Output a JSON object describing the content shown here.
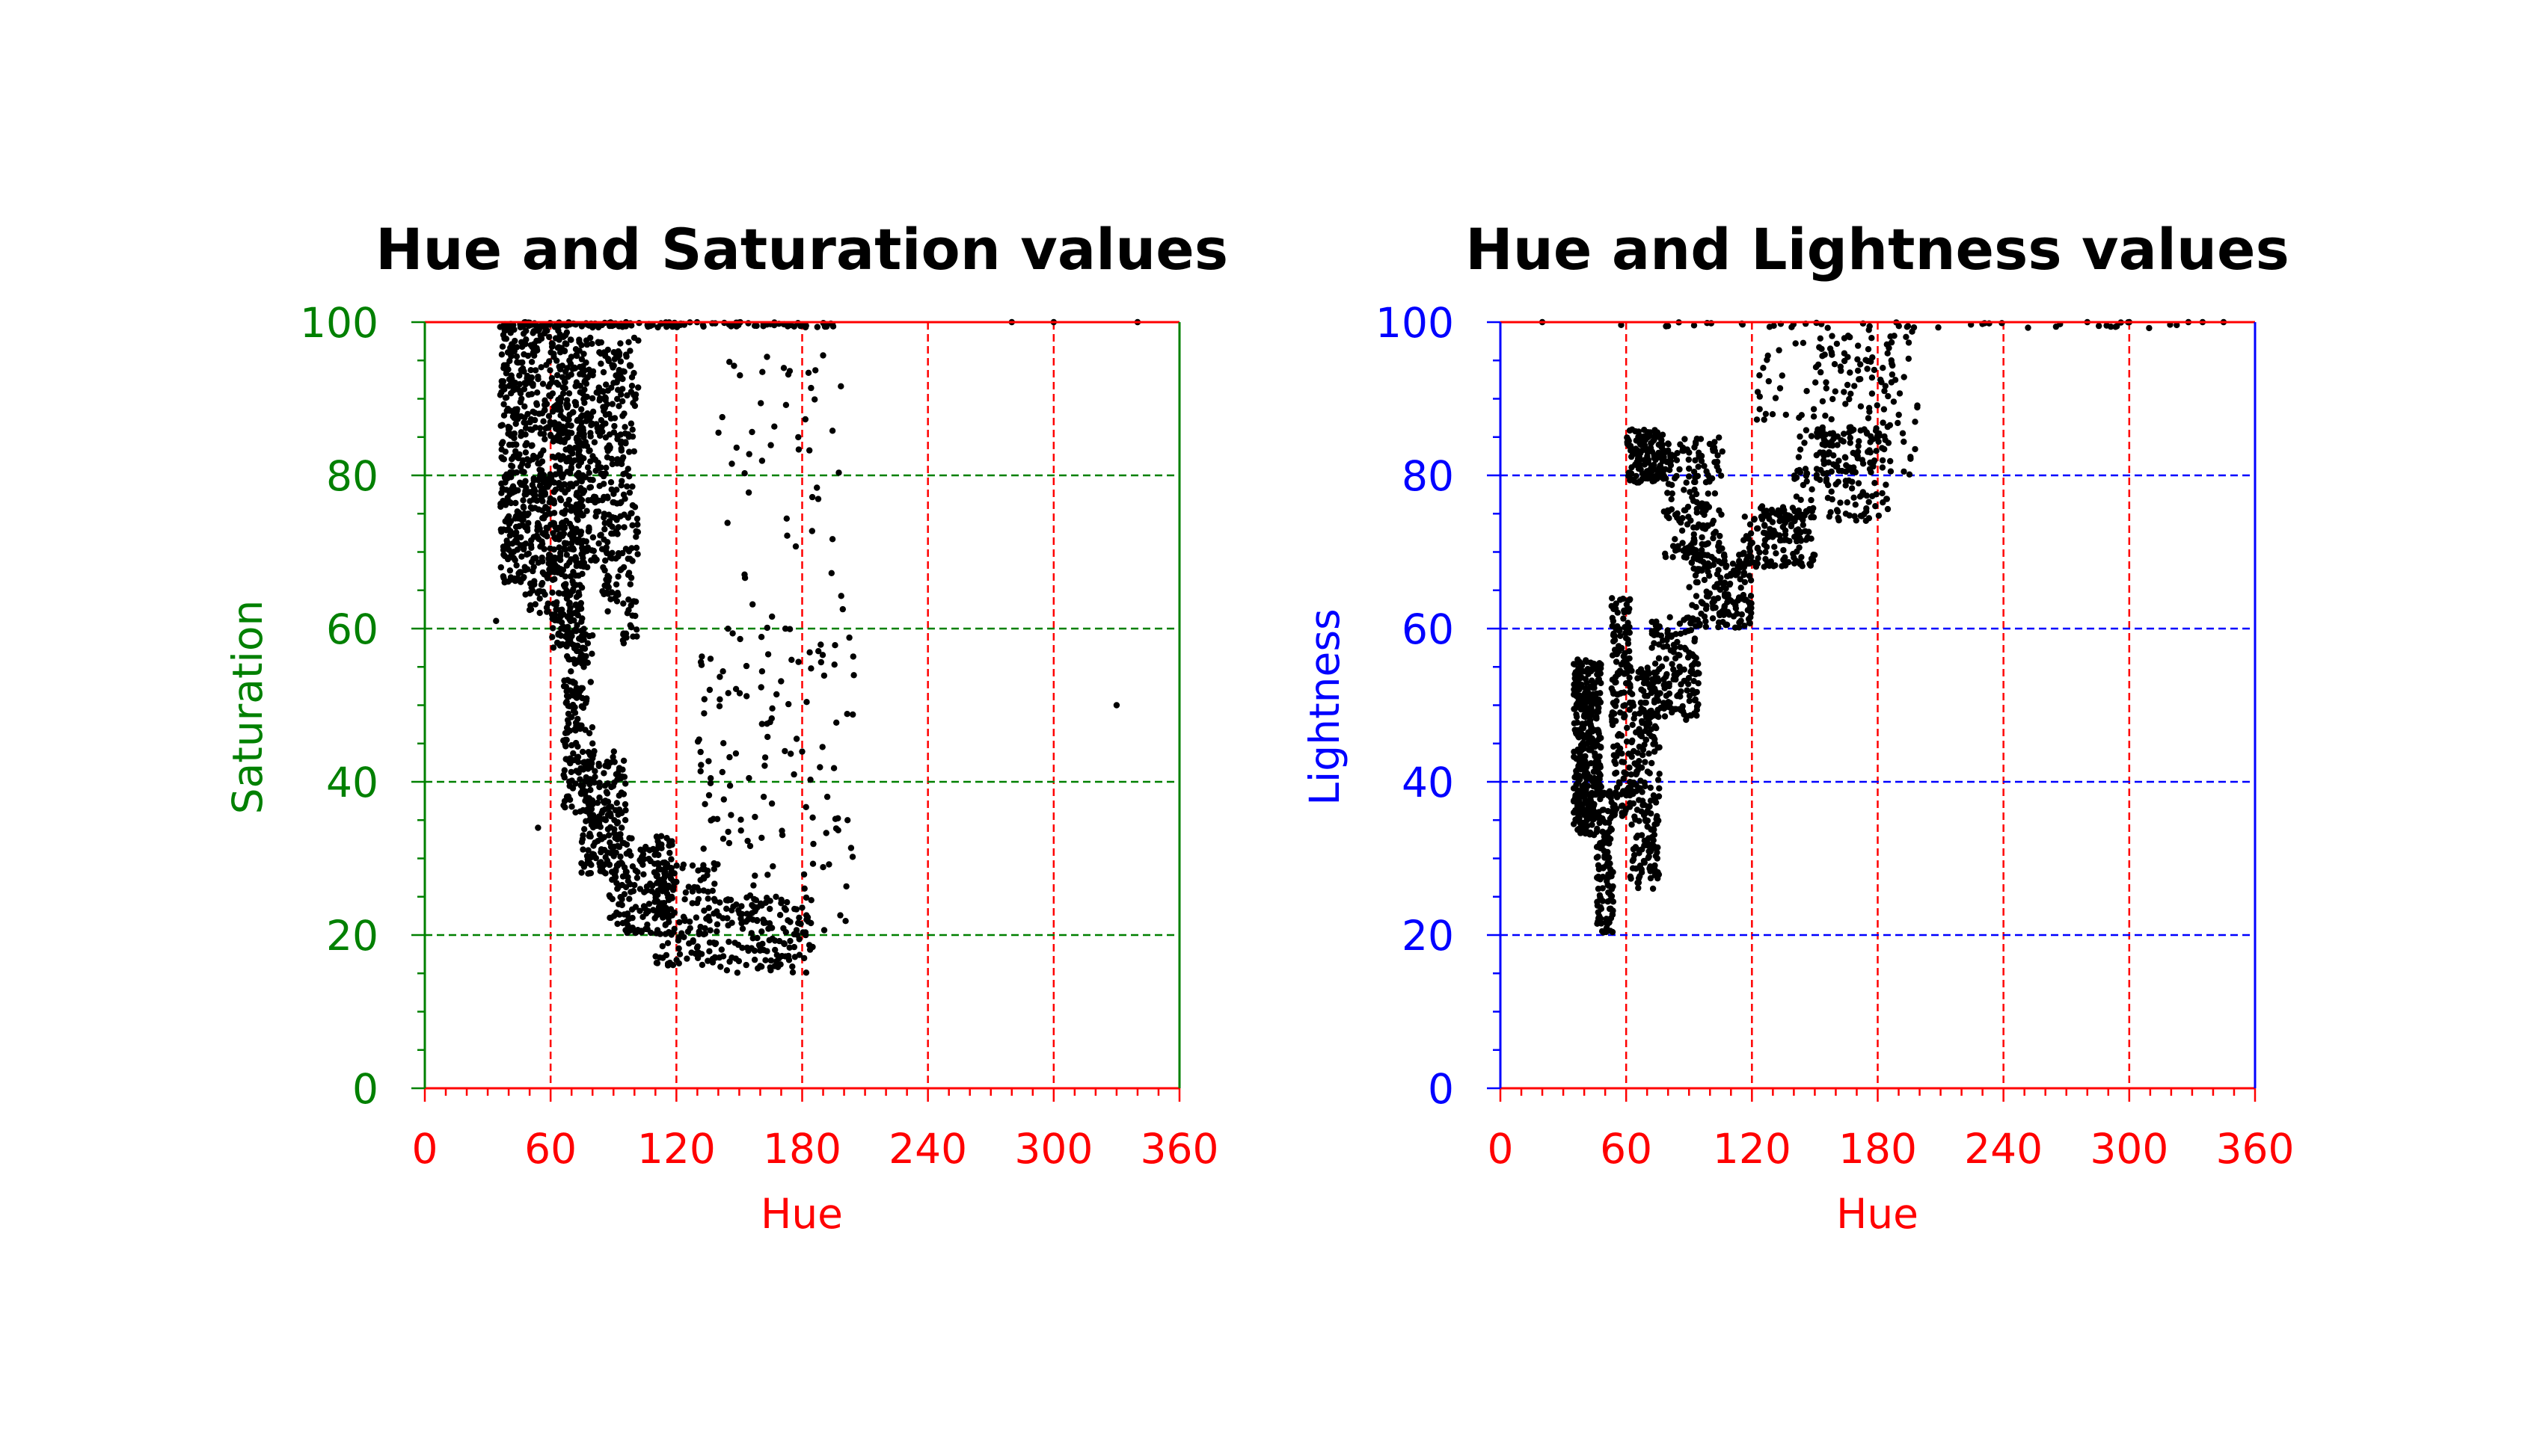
{
  "chart_data": [
    {
      "type": "scatter",
      "title": "Hue and Saturation values",
      "xlabel": "Hue",
      "ylabel": "Saturation",
      "xlim": [
        0,
        360
      ],
      "ylim": [
        0,
        100
      ],
      "xticks": [
        0,
        60,
        120,
        180,
        240,
        300,
        360
      ],
      "yticks": [
        0,
        20,
        40,
        60,
        80,
        100
      ],
      "grid": true,
      "colors": {
        "x_axis": "#ff0000",
        "y_axis": "#008000",
        "points": "#000000"
      },
      "point_clusters": [
        {
          "x_range": [
            36,
            48
          ],
          "y_range": [
            66,
            100
          ],
          "n": 260
        },
        {
          "x_range": [
            48,
            60
          ],
          "y_range": [
            62,
            100
          ],
          "n": 240
        },
        {
          "x_range": [
            60,
            68
          ],
          "y_range": [
            57,
            99
          ],
          "n": 220
        },
        {
          "x_range": [
            68,
            76
          ],
          "y_range": [
            55,
            98
          ],
          "n": 200
        },
        {
          "x_range": [
            72,
            84
          ],
          "y_range": [
            68,
            98
          ],
          "n": 140
        },
        {
          "x_range": [
            84,
            92
          ],
          "y_range": [
            62,
            98
          ],
          "n": 130
        },
        {
          "x_range": [
            92,
            102
          ],
          "y_range": [
            58,
            98
          ],
          "n": 130
        },
        {
          "x_range": [
            66,
            80
          ],
          "y_range": [
            36,
            60
          ],
          "n": 160
        },
        {
          "x_range": [
            74,
            96
          ],
          "y_range": [
            28,
            44
          ],
          "n": 180
        },
        {
          "x_range": [
            88,
            118
          ],
          "y_range": [
            20,
            33
          ],
          "n": 180
        },
        {
          "x_range": [
            110,
            140
          ],
          "y_range": [
            16,
            30
          ],
          "n": 140
        },
        {
          "x_range": [
            140,
            185
          ],
          "y_range": [
            15,
            25
          ],
          "n": 140
        },
        {
          "x_range": [
            130,
            205
          ],
          "y_range": [
            20,
            60
          ],
          "n": 130
        },
        {
          "x_range": [
            140,
            200
          ],
          "y_range": [
            55,
            97
          ],
          "n": 55
        },
        {
          "x_range": [
            35,
            195
          ],
          "y_range": [
            99.3,
            100
          ],
          "n": 140
        }
      ],
      "outliers": [
        [
          330,
          50
        ],
        [
          34,
          61
        ],
        [
          54,
          34
        ],
        [
          340,
          100
        ],
        [
          280,
          100
        ],
        [
          300,
          100
        ]
      ]
    },
    {
      "type": "scatter",
      "title": "Hue and Lightness values",
      "xlabel": "Hue",
      "ylabel": "Lightness",
      "xlim": [
        0,
        360
      ],
      "ylim": [
        0,
        100
      ],
      "xticks": [
        0,
        60,
        120,
        180,
        240,
        300,
        360
      ],
      "yticks": [
        0,
        20,
        40,
        60,
        80,
        100
      ],
      "grid": true,
      "colors": {
        "x_axis": "#ff0000",
        "y_axis": "#0000ff",
        "points": "#000000"
      },
      "point_clusters": [
        {
          "x_range": [
            35,
            48
          ],
          "y_range": [
            33,
            56
          ],
          "n": 380
        },
        {
          "x_range": [
            46,
            54
          ],
          "y_range": [
            20,
            40
          ],
          "n": 120
        },
        {
          "x_range": [
            53,
            62
          ],
          "y_range": [
            35,
            64
          ],
          "n": 160
        },
        {
          "x_range": [
            62,
            76
          ],
          "y_range": [
            26,
            55
          ],
          "n": 220
        },
        {
          "x_range": [
            72,
            95
          ],
          "y_range": [
            48,
            62
          ],
          "n": 160
        },
        {
          "x_range": [
            90,
            120
          ],
          "y_range": [
            60,
            70
          ],
          "n": 160
        },
        {
          "x_range": [
            60,
            78
          ],
          "y_range": [
            79,
            86
          ],
          "n": 160
        },
        {
          "x_range": [
            78,
            106
          ],
          "y_range": [
            69,
            85
          ],
          "n": 180
        },
        {
          "x_range": [
            115,
            150
          ],
          "y_range": [
            68,
            76
          ],
          "n": 150
        },
        {
          "x_range": [
            140,
            185
          ],
          "y_range": [
            74,
            86
          ],
          "n": 140
        },
        {
          "x_range": [
            150,
            200
          ],
          "y_range": [
            80,
            100
          ],
          "n": 140
        },
        {
          "x_range": [
            120,
            180
          ],
          "y_range": [
            84,
            98
          ],
          "n": 40
        },
        {
          "x_range": [
            20,
            340
          ],
          "y_range": [
            99.2,
            100
          ],
          "n": 40
        }
      ],
      "outliers": [
        [
          20,
          100
        ],
        [
          280,
          100
        ],
        [
          300,
          100
        ],
        [
          335,
          100
        ],
        [
          345,
          100
        ]
      ]
    }
  ]
}
